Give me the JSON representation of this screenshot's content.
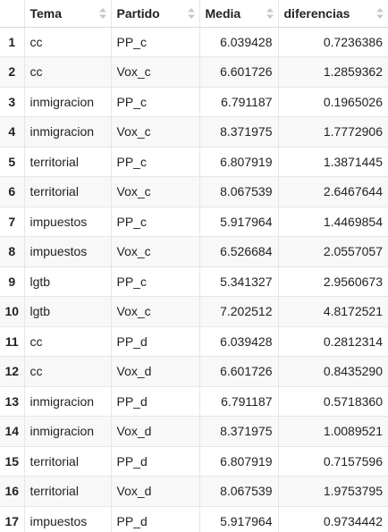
{
  "table": {
    "columns": [
      {
        "key": "tema",
        "label": "Tema"
      },
      {
        "key": "partido",
        "label": "Partido"
      },
      {
        "key": "media",
        "label": "Media"
      },
      {
        "key": "diferencias",
        "label": "diferencias"
      }
    ],
    "rows": [
      {
        "index": "1",
        "tema": "cc",
        "partido": "PP_c",
        "media": "6.039428",
        "diferencias": "0.7236386"
      },
      {
        "index": "2",
        "tema": "cc",
        "partido": "Vox_c",
        "media": "6.601726",
        "diferencias": "1.2859362"
      },
      {
        "index": "3",
        "tema": "inmigracion",
        "partido": "PP_c",
        "media": "6.791187",
        "diferencias": "0.1965026"
      },
      {
        "index": "4",
        "tema": "inmigracion",
        "partido": "Vox_c",
        "media": "8.371975",
        "diferencias": "1.7772906"
      },
      {
        "index": "5",
        "tema": "territorial",
        "partido": "PP_c",
        "media": "6.807919",
        "diferencias": "1.3871445"
      },
      {
        "index": "6",
        "tema": "territorial",
        "partido": "Vox_c",
        "media": "8.067539",
        "diferencias": "2.6467644"
      },
      {
        "index": "7",
        "tema": "impuestos",
        "partido": "PP_c",
        "media": "5.917964",
        "diferencias": "1.4469854"
      },
      {
        "index": "8",
        "tema": "impuestos",
        "partido": "Vox_c",
        "media": "6.526684",
        "diferencias": "2.0557057"
      },
      {
        "index": "9",
        "tema": "lgtb",
        "partido": "PP_c",
        "media": "5.341327",
        "diferencias": "2.9560673"
      },
      {
        "index": "10",
        "tema": "lgtb",
        "partido": "Vox_c",
        "media": "7.202512",
        "diferencias": "4.8172521"
      },
      {
        "index": "11",
        "tema": "cc",
        "partido": "PP_d",
        "media": "6.039428",
        "diferencias": "0.2812314"
      },
      {
        "index": "12",
        "tema": "cc",
        "partido": "Vox_d",
        "media": "6.601726",
        "diferencias": "0.8435290"
      },
      {
        "index": "13",
        "tema": "inmigracion",
        "partido": "PP_d",
        "media": "6.791187",
        "diferencias": "0.5718360"
      },
      {
        "index": "14",
        "tema": "inmigracion",
        "partido": "Vox_d",
        "media": "8.371975",
        "diferencias": "1.0089521"
      },
      {
        "index": "15",
        "tema": "territorial",
        "partido": "PP_d",
        "media": "6.807919",
        "diferencias": "0.7157596"
      },
      {
        "index": "16",
        "tema": "territorial",
        "partido": "Vox_d",
        "media": "8.067539",
        "diferencias": "1.9753795"
      },
      {
        "index": "17",
        "tema": "impuestos",
        "partido": "PP_d",
        "media": "5.917964",
        "diferencias": "0.9734442"
      }
    ]
  },
  "icons": {
    "sort": "sort-arrows-icon"
  },
  "colors": {
    "stripe": "#f8f8f8",
    "border": "#e6e6e6",
    "sort_arrow": "#c8c8c8"
  }
}
